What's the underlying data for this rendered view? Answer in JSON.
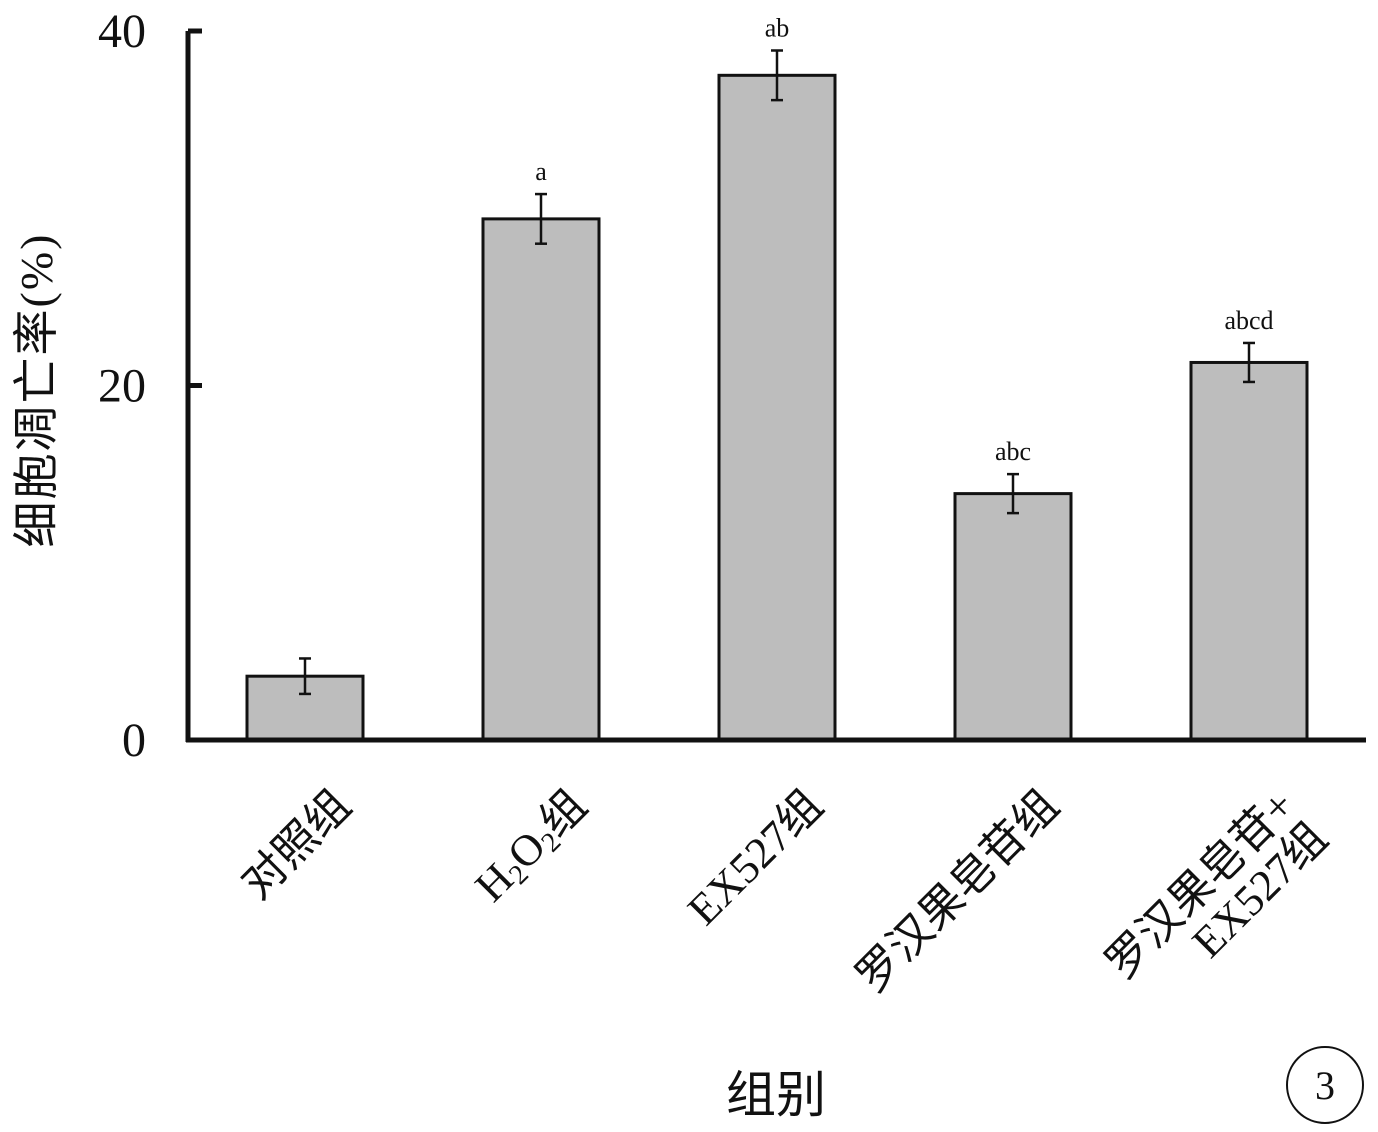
{
  "chart_data": {
    "type": "bar",
    "xlabel": "组别",
    "ylabel": "细胞凋亡率(%)",
    "ylim": [
      0,
      40
    ],
    "yticks": [
      "0",
      "20",
      "40"
    ],
    "categories": [
      "对照组",
      "H2O2组",
      "EX527组",
      "罗汉果皂苷组",
      "罗汉果皂苷+EX527组"
    ],
    "values": [
      3.6,
      29.4,
      37.5,
      13.9,
      21.3
    ],
    "errors": [
      1.0,
      1.4,
      1.4,
      1.1,
      1.1
    ],
    "significance": [
      "",
      "a",
      "ab",
      "abc",
      "abcd"
    ],
    "bar_color": "#bdbdbd",
    "edge_color": "#111111"
  },
  "x_tick_labels": [
    {
      "lines": [
        "对照组"
      ]
    },
    {
      "parts": [
        "H",
        "2",
        "O",
        "2",
        "组"
      ]
    },
    {
      "lines": [
        "EX527组"
      ]
    },
    {
      "lines": [
        "罗汉果皂苷组"
      ]
    },
    {
      "lines": [
        "罗汉果皂苷+",
        "EX527组"
      ]
    }
  ],
  "panel_badge": "3"
}
